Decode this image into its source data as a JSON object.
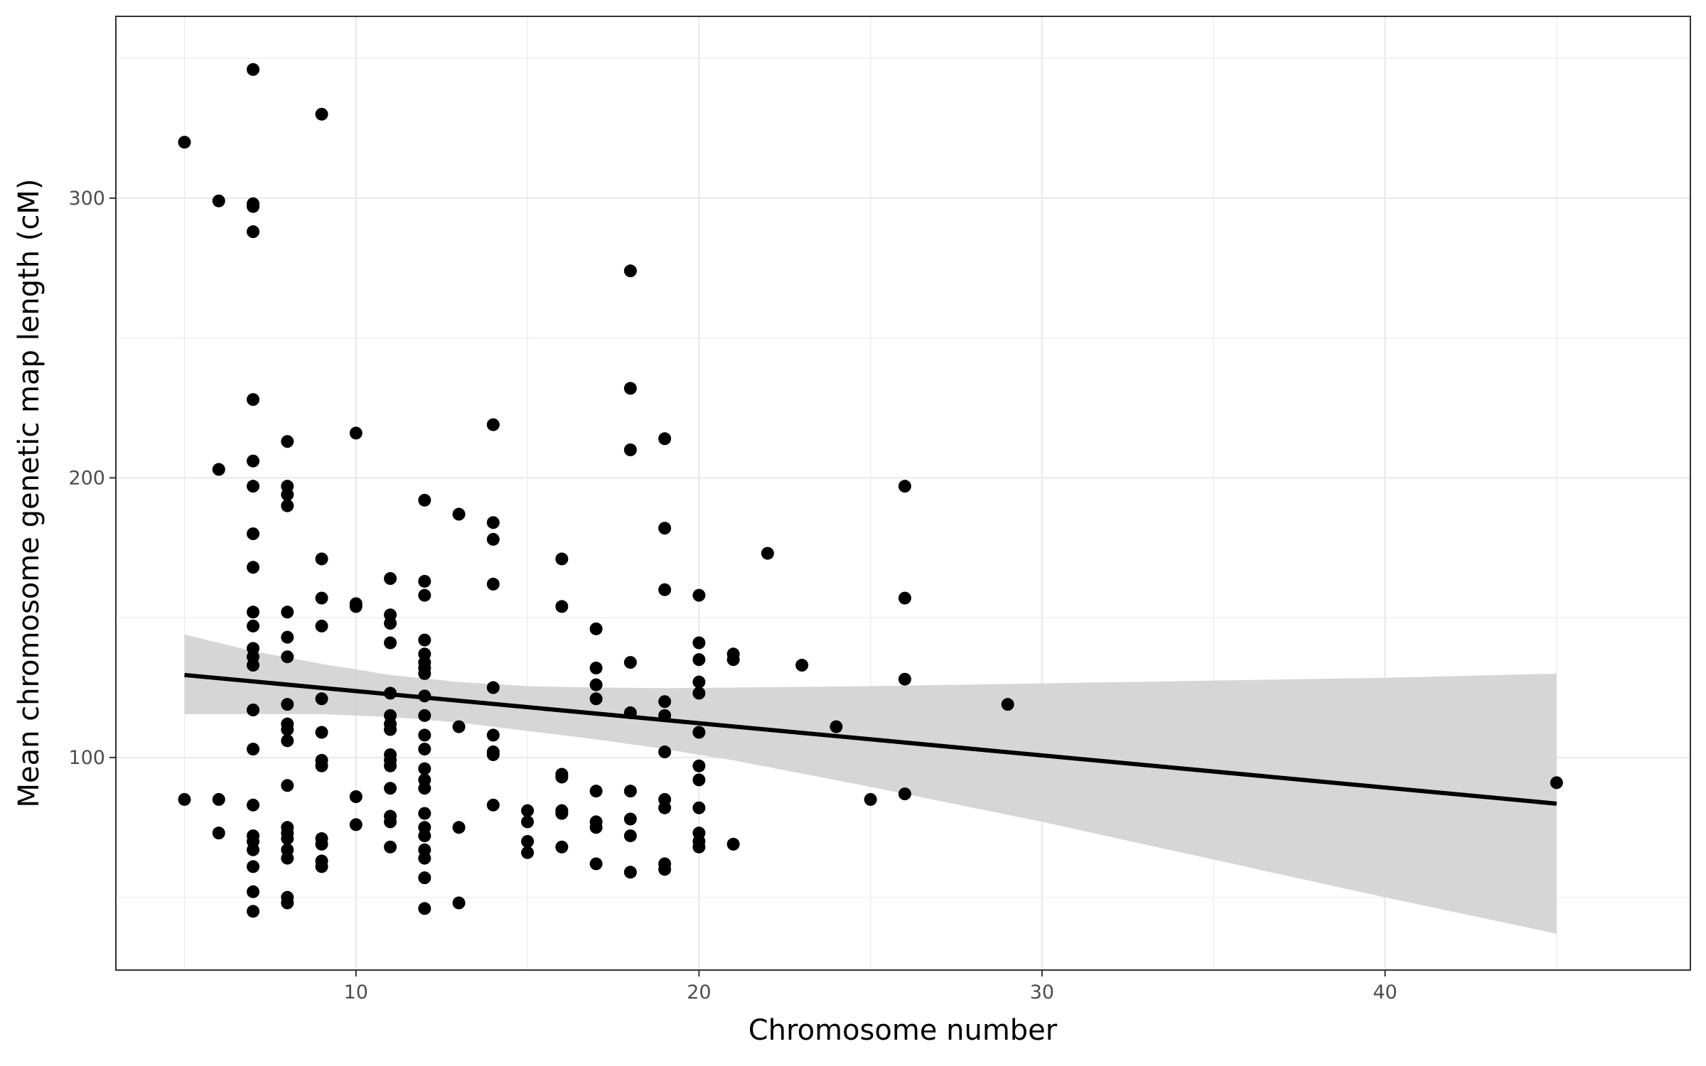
{
  "chart_data": {
    "type": "scatter",
    "xlabel": "Chromosome number",
    "ylabel": "Mean chromosome genetic map length (cM)",
    "xlim": [
      3,
      48.9
    ],
    "ylim": [
      24,
      365
    ],
    "x_ticks": [
      10,
      20,
      30,
      40
    ],
    "x_tick_labels": [
      "10",
      "20",
      "30",
      "40"
    ],
    "x_minor_ticks": [
      5,
      15,
      25,
      35,
      45
    ],
    "y_ticks": [
      100,
      200,
      300
    ],
    "y_tick_labels": [
      "100",
      "200",
      "300"
    ],
    "y_minor_ticks": [
      50,
      150,
      250,
      350
    ],
    "grid": true,
    "legend": "none",
    "colors": {
      "points": "#000000",
      "line": "#000000",
      "ribbon": "#d4d4d4",
      "grid": "#ebebeb",
      "panel_border": "#333333"
    },
    "points": [
      [
        5,
        320
      ],
      [
        5,
        85
      ],
      [
        6,
        299
      ],
      [
        6,
        203
      ],
      [
        6,
        85
      ],
      [
        6,
        73
      ],
      [
        7,
        346
      ],
      [
        7,
        298
      ],
      [
        7,
        297
      ],
      [
        7,
        288
      ],
      [
        7,
        228
      ],
      [
        7,
        206
      ],
      [
        7,
        197
      ],
      [
        7,
        180
      ],
      [
        7,
        168
      ],
      [
        7,
        152
      ],
      [
        7,
        147
      ],
      [
        7,
        139
      ],
      [
        7,
        136
      ],
      [
        7,
        133
      ],
      [
        7,
        117
      ],
      [
        7,
        103
      ],
      [
        7,
        83
      ],
      [
        7,
        72
      ],
      [
        7,
        70
      ],
      [
        7,
        67
      ],
      [
        7,
        61
      ],
      [
        7,
        52
      ],
      [
        7,
        45
      ],
      [
        8,
        213
      ],
      [
        8,
        197
      ],
      [
        8,
        194
      ],
      [
        8,
        190
      ],
      [
        8,
        152
      ],
      [
        8,
        143
      ],
      [
        8,
        136
      ],
      [
        8,
        119
      ],
      [
        8,
        112
      ],
      [
        8,
        110
      ],
      [
        8,
        106
      ],
      [
        8,
        90
      ],
      [
        8,
        75
      ],
      [
        8,
        73
      ],
      [
        8,
        71
      ],
      [
        8,
        67
      ],
      [
        8,
        64
      ],
      [
        8,
        50
      ],
      [
        8,
        48
      ],
      [
        9,
        330
      ],
      [
        9,
        171
      ],
      [
        9,
        157
      ],
      [
        9,
        147
      ],
      [
        9,
        121
      ],
      [
        9,
        109
      ],
      [
        9,
        99
      ],
      [
        9,
        97
      ],
      [
        9,
        71
      ],
      [
        9,
        69
      ],
      [
        9,
        63
      ],
      [
        9,
        61
      ],
      [
        10,
        216
      ],
      [
        10,
        155
      ],
      [
        10,
        154
      ],
      [
        10,
        86
      ],
      [
        10,
        76
      ],
      [
        11,
        164
      ],
      [
        11,
        151
      ],
      [
        11,
        148
      ],
      [
        11,
        141
      ],
      [
        11,
        123
      ],
      [
        11,
        115
      ],
      [
        11,
        112
      ],
      [
        11,
        110
      ],
      [
        11,
        101
      ],
      [
        11,
        99
      ],
      [
        11,
        97
      ],
      [
        11,
        89
      ],
      [
        11,
        79
      ],
      [
        11,
        77
      ],
      [
        11,
        68
      ],
      [
        12,
        192
      ],
      [
        12,
        163
      ],
      [
        12,
        158
      ],
      [
        12,
        142
      ],
      [
        12,
        137
      ],
      [
        12,
        134
      ],
      [
        12,
        132
      ],
      [
        12,
        130
      ],
      [
        12,
        122
      ],
      [
        12,
        115
      ],
      [
        12,
        108
      ],
      [
        12,
        103
      ],
      [
        12,
        96
      ],
      [
        12,
        92
      ],
      [
        12,
        89
      ],
      [
        12,
        80
      ],
      [
        12,
        75
      ],
      [
        12,
        72
      ],
      [
        12,
        67
      ],
      [
        12,
        64
      ],
      [
        12,
        57
      ],
      [
        12,
        46
      ],
      [
        13,
        187
      ],
      [
        13,
        111
      ],
      [
        13,
        75
      ],
      [
        13,
        48
      ],
      [
        14,
        219
      ],
      [
        14,
        184
      ],
      [
        14,
        178
      ],
      [
        14,
        162
      ],
      [
        14,
        125
      ],
      [
        14,
        108
      ],
      [
        14,
        102
      ],
      [
        14,
        101
      ],
      [
        14,
        83
      ],
      [
        15,
        81
      ],
      [
        15,
        77
      ],
      [
        15,
        70
      ],
      [
        15,
        66
      ],
      [
        16,
        171
      ],
      [
        16,
        154
      ],
      [
        16,
        94
      ],
      [
        16,
        93
      ],
      [
        16,
        81
      ],
      [
        16,
        80
      ],
      [
        16,
        68
      ],
      [
        17,
        146
      ],
      [
        17,
        132
      ],
      [
        17,
        126
      ],
      [
        17,
        121
      ],
      [
        17,
        88
      ],
      [
        17,
        77
      ],
      [
        17,
        75
      ],
      [
        17,
        62
      ],
      [
        18,
        274
      ],
      [
        18,
        232
      ],
      [
        18,
        210
      ],
      [
        18,
        134
      ],
      [
        18,
        116
      ],
      [
        18,
        88
      ],
      [
        18,
        78
      ],
      [
        18,
        72
      ],
      [
        18,
        59
      ],
      [
        19,
        214
      ],
      [
        19,
        182
      ],
      [
        19,
        160
      ],
      [
        19,
        120
      ],
      [
        19,
        115
      ],
      [
        19,
        102
      ],
      [
        19,
        85
      ],
      [
        19,
        82
      ],
      [
        19,
        62
      ],
      [
        19,
        60
      ],
      [
        20,
        158
      ],
      [
        20,
        141
      ],
      [
        20,
        135
      ],
      [
        20,
        127
      ],
      [
        20,
        123
      ],
      [
        20,
        109
      ],
      [
        20,
        97
      ],
      [
        20,
        92
      ],
      [
        20,
        82
      ],
      [
        20,
        73
      ],
      [
        20,
        70
      ],
      [
        20,
        68
      ],
      [
        21,
        137
      ],
      [
        21,
        135
      ],
      [
        21,
        69
      ],
      [
        22,
        173
      ],
      [
        23,
        133
      ],
      [
        24,
        111
      ],
      [
        25,
        85
      ],
      [
        26,
        197
      ],
      [
        26,
        157
      ],
      [
        26,
        128
      ],
      [
        26,
        87
      ],
      [
        29,
        119
      ],
      [
        45,
        91
      ]
    ],
    "fit_line": [
      [
        5,
        129.5
      ],
      [
        45,
        83.5
      ]
    ],
    "confidence_band": {
      "x": [
        5,
        7,
        9,
        11,
        13,
        15,
        17,
        19,
        21,
        25,
        30,
        35,
        40,
        45
      ],
      "upper": [
        144,
        138,
        133.5,
        129.5,
        127,
        125.5,
        125,
        124.8,
        125,
        125.5,
        126.5,
        127.5,
        128.5,
        130
      ],
      "lower": [
        115.5,
        115.5,
        115.5,
        114.5,
        112.5,
        109.5,
        106.5,
        103,
        99,
        89.5,
        77,
        63.5,
        50,
        37
      ]
    }
  }
}
